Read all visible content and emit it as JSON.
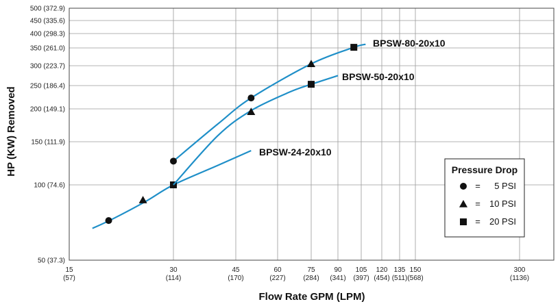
{
  "chart_data": {
    "type": "line",
    "title": "",
    "xlabel": "Flow Rate GPM (LPM)",
    "ylabel": "HP (KW) Removed",
    "x_scale": "log",
    "y_scale": "log",
    "xlim": [
      15,
      400
    ],
    "ylim": [
      50,
      500
    ],
    "grid": true,
    "x_ticks": [
      {
        "value": 15,
        "label": "15",
        "sub": "(57)"
      },
      {
        "value": 30,
        "label": "30",
        "sub": "(114)"
      },
      {
        "value": 45,
        "label": "45",
        "sub": "(170)"
      },
      {
        "value": 60,
        "label": "60",
        "sub": "(227)"
      },
      {
        "value": 75,
        "label": "75",
        "sub": "(284)"
      },
      {
        "value": 90,
        "label": "90",
        "sub": "(341)"
      },
      {
        "value": 105,
        "label": "105",
        "sub": "(397)"
      },
      {
        "value": 120,
        "label": "120",
        "sub": "(454)"
      },
      {
        "value": 135,
        "label": "135",
        "sub": "(511)"
      },
      {
        "value": 150,
        "label": "150",
        "sub": "(568)"
      },
      {
        "value": 300,
        "label": "300",
        "sub": "(1136)"
      }
    ],
    "y_ticks": [
      {
        "value": 50,
        "label": "50 (37.3)"
      },
      {
        "value": 100,
        "label": "100 (74.6)"
      },
      {
        "value": 150,
        "label": "150 (111.9)"
      },
      {
        "value": 200,
        "label": "200 (149.1)"
      },
      {
        "value": 250,
        "label": "250 (186.4)"
      },
      {
        "value": 300,
        "label": "300 (223.7)"
      },
      {
        "value": 350,
        "label": "350 (261.0)"
      },
      {
        "value": 400,
        "label": "400 (298.3)"
      },
      {
        "value": 450,
        "label": "450 (335.6)"
      },
      {
        "value": 500,
        "label": "500 (372.9)"
      }
    ],
    "series": [
      {
        "name": "BPSW-24-20x10",
        "color": "#1f8fc8",
        "curve": [
          [
            17.5,
            67
          ],
          [
            20,
            73
          ],
          [
            25,
            86
          ],
          [
            30,
            100
          ],
          [
            40,
            120
          ],
          [
            50,
            138
          ]
        ],
        "markers": [
          {
            "x": 19.5,
            "y": 72,
            "pressure": "5 PSI"
          },
          {
            "x": 24.5,
            "y": 87,
            "pressure": "10 PSI"
          },
          {
            "x": 30,
            "y": 100,
            "pressure": "20 PSI"
          }
        ]
      },
      {
        "name": "BPSW-50-20x10",
        "color": "#1f8fc8",
        "curve": [
          [
            30,
            100
          ],
          [
            40,
            158
          ],
          [
            50,
            197
          ],
          [
            65,
            235
          ],
          [
            75,
            253
          ],
          [
            90,
            274
          ]
        ],
        "markers": [
          {
            "x": 50,
            "y": 195,
            "pressure": "10 PSI"
          },
          {
            "x": 75,
            "y": 253,
            "pressure": "20 PSI"
          }
        ]
      },
      {
        "name": "BPSW-80-20x10",
        "color": "#1f8fc8",
        "curve": [
          [
            30,
            125
          ],
          [
            40,
            175
          ],
          [
            50,
            222
          ],
          [
            75,
            305
          ],
          [
            100,
            352
          ],
          [
            108,
            362
          ]
        ],
        "markers": [
          {
            "x": 30,
            "y": 125,
            "pressure": "5 PSI"
          },
          {
            "x": 50,
            "y": 222,
            "pressure": "5 PSI"
          },
          {
            "x": 75,
            "y": 305,
            "pressure": "10 PSI"
          },
          {
            "x": 100,
            "y": 352,
            "pressure": "20 PSI"
          }
        ]
      }
    ],
    "legend": {
      "title": "Pressure Drop",
      "position": "bottom-right",
      "entries": [
        {
          "marker": "circle",
          "label": "5 PSI"
        },
        {
          "marker": "triangle",
          "label": "10 PSI"
        },
        {
          "marker": "square",
          "label": "20 PSI"
        }
      ],
      "equals": "="
    }
  }
}
